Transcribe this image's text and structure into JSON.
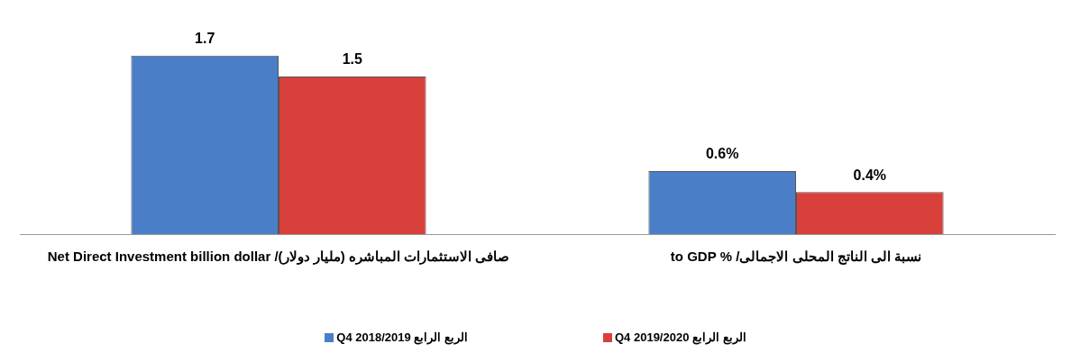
{
  "chart_data": {
    "type": "bar",
    "categories": [
      "صافى الاستثمارات المباشره (مليار دولار)/ Net Direct Investment  billion dollar",
      "نسبة الى الناتج المحلى الاجمالى/ % to GDP"
    ],
    "series": [
      {
        "name": "الربع الرابع Q4 2018/2019",
        "color": "#4a7fc8",
        "values": [
          1.7,
          0.6
        ],
        "value_labels": [
          "1.7",
          "0.6%"
        ]
      },
      {
        "name": "الربع الرابع Q4 2019/2020",
        "color": "#d9403c",
        "values": [
          1.5,
          0.4
        ],
        "value_labels": [
          "1.5",
          "0.4%"
        ]
      }
    ],
    "legend": "bottom",
    "grid": false
  }
}
